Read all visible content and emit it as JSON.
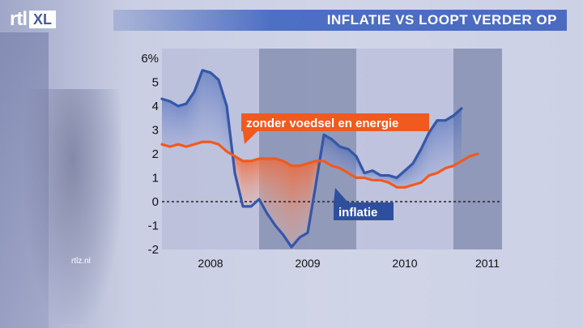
{
  "header": {
    "title": "INFLATIE VS LOOPT VERDER OP",
    "logo_rtl": "rtl",
    "logo_xl": "XL"
  },
  "source": "rtlz.nl",
  "chart_data": {
    "type": "line",
    "title": "INFLATIE VS LOOPT VERDER OP",
    "ylim": [
      -2,
      6
    ],
    "yticks": [
      {
        "v": 6,
        "label": "6%"
      },
      {
        "v": 5,
        "label": "5"
      },
      {
        "v": 4,
        "label": "4"
      },
      {
        "v": 3,
        "label": "3"
      },
      {
        "v": 2,
        "label": "2"
      },
      {
        "v": 1,
        "label": "1"
      },
      {
        "v": 0,
        "label": "0"
      },
      {
        "v": -1,
        "label": "-1"
      },
      {
        "v": -2,
        "label": "-2"
      }
    ],
    "xlim": [
      2008.0,
      2011.5
    ],
    "xticks": [
      {
        "v": 2008.5,
        "label": "2008"
      },
      {
        "v": 2009.5,
        "label": "2009"
      },
      {
        "v": 2010.5,
        "label": "2010"
      },
      {
        "v": 2011.5,
        "label": "2011"
      }
    ],
    "year_bands": [
      {
        "from": 2008.0,
        "to": 2009.0,
        "shade": "light"
      },
      {
        "from": 2009.0,
        "to": 2010.0,
        "shade": "dark"
      },
      {
        "from": 2010.0,
        "to": 2011.0,
        "shade": "light"
      },
      {
        "from": 2011.0,
        "to": 2011.5,
        "shade": "dark"
      }
    ],
    "zero_line": {
      "y": 0,
      "style": "dashed"
    },
    "series": [
      {
        "name": "inflatie",
        "color": "#3557a8",
        "points": [
          [
            2008.0,
            4.3
          ],
          [
            2008.083,
            4.2
          ],
          [
            2008.167,
            4.0
          ],
          [
            2008.25,
            4.1
          ],
          [
            2008.333,
            4.6
          ],
          [
            2008.417,
            5.5
          ],
          [
            2008.5,
            5.4
          ],
          [
            2008.583,
            5.1
          ],
          [
            2008.667,
            4.0
          ],
          [
            2008.75,
            1.2
          ],
          [
            2008.833,
            -0.2
          ],
          [
            2008.917,
            -0.2
          ],
          [
            2009.0,
            0.1
          ],
          [
            2009.083,
            -0.5
          ],
          [
            2009.167,
            -1.0
          ],
          [
            2009.25,
            -1.4
          ],
          [
            2009.333,
            -1.9
          ],
          [
            2009.417,
            -1.5
          ],
          [
            2009.5,
            -1.3
          ],
          [
            2009.583,
            0.7
          ],
          [
            2009.667,
            2.8
          ],
          [
            2009.75,
            2.6
          ],
          [
            2009.833,
            2.3
          ],
          [
            2009.917,
            2.2
          ],
          [
            2010.0,
            1.9
          ],
          [
            2010.083,
            1.2
          ],
          [
            2010.167,
            1.3
          ],
          [
            2010.25,
            1.1
          ],
          [
            2010.333,
            1.1
          ],
          [
            2010.417,
            1.0
          ],
          [
            2010.5,
            1.3
          ],
          [
            2010.583,
            1.6
          ],
          [
            2010.667,
            2.2
          ],
          [
            2010.75,
            2.9
          ],
          [
            2010.833,
            3.4
          ],
          [
            2010.917,
            3.4
          ],
          [
            2011.0,
            3.6
          ],
          [
            2011.083,
            3.9
          ]
        ]
      },
      {
        "name": "zonder voedsel en energie",
        "color": "#f05a1e",
        "points": [
          [
            2008.0,
            2.4
          ],
          [
            2008.083,
            2.3
          ],
          [
            2008.167,
            2.4
          ],
          [
            2008.25,
            2.3
          ],
          [
            2008.333,
            2.4
          ],
          [
            2008.417,
            2.5
          ],
          [
            2008.5,
            2.5
          ],
          [
            2008.583,
            2.4
          ],
          [
            2008.667,
            2.1
          ],
          [
            2008.75,
            1.9
          ],
          [
            2008.833,
            1.7
          ],
          [
            2008.917,
            1.7
          ],
          [
            2009.0,
            1.8
          ],
          [
            2009.083,
            1.8
          ],
          [
            2009.167,
            1.8
          ],
          [
            2009.25,
            1.7
          ],
          [
            2009.333,
            1.5
          ],
          [
            2009.417,
            1.5
          ],
          [
            2009.5,
            1.6
          ],
          [
            2009.583,
            1.7
          ],
          [
            2009.667,
            1.7
          ],
          [
            2009.75,
            1.5
          ],
          [
            2009.833,
            1.4
          ],
          [
            2009.917,
            1.2
          ],
          [
            2010.0,
            1.0
          ],
          [
            2010.083,
            1.0
          ],
          [
            2010.167,
            0.9
          ],
          [
            2010.25,
            0.9
          ],
          [
            2010.333,
            0.8
          ],
          [
            2010.417,
            0.6
          ],
          [
            2010.5,
            0.6
          ],
          [
            2010.583,
            0.7
          ],
          [
            2010.667,
            0.8
          ],
          [
            2010.75,
            1.1
          ],
          [
            2010.833,
            1.2
          ],
          [
            2010.917,
            1.4
          ],
          [
            2011.0,
            1.5
          ],
          [
            2011.083,
            1.7
          ],
          [
            2011.167,
            1.9
          ],
          [
            2011.25,
            2.0
          ]
        ]
      }
    ],
    "labels": [
      {
        "text": "zonder voedsel en energie",
        "series": 1
      },
      {
        "text": "inflatie",
        "series": 0
      }
    ]
  }
}
